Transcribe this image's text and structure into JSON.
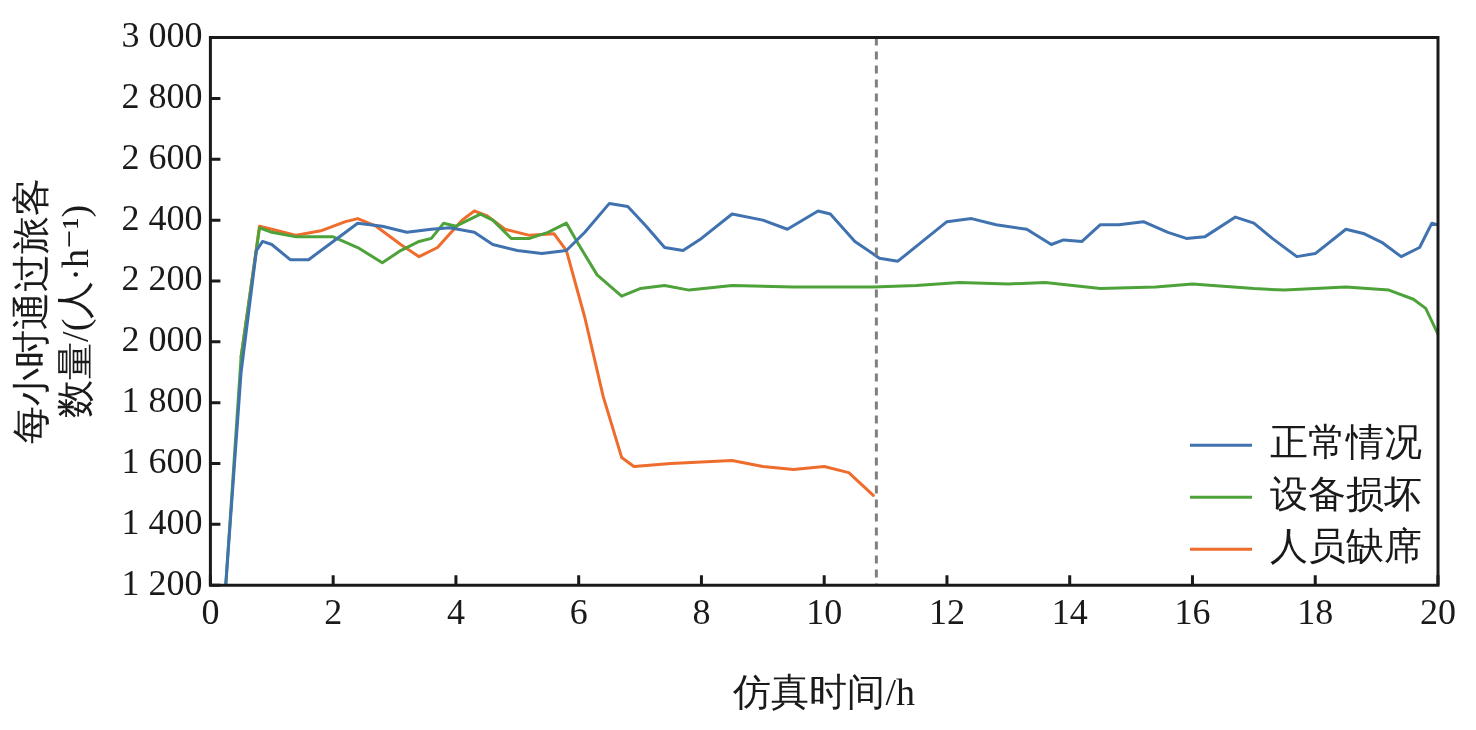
{
  "chart_data": {
    "type": "line",
    "xlabel": "仿真时间/h",
    "ylabel": "每小时通过旅客数量/(人·h⁻¹)",
    "xlim": [
      0,
      20
    ],
    "xticks": [
      0,
      2,
      4,
      6,
      8,
      10,
      12,
      14,
      16,
      18,
      20
    ],
    "ylim": [
      1200,
      3000
    ],
    "yticks": [
      {
        "value": 1200,
        "label": "1 200"
      },
      {
        "value": 1400,
        "label": "1 400"
      },
      {
        "value": 1600,
        "label": "1 600"
      },
      {
        "value": 1800,
        "label": "1 800"
      },
      {
        "value": 2000,
        "label": "2 000"
      },
      {
        "value": 2200,
        "label": "2 200"
      },
      {
        "value": 2400,
        "label": "2 400"
      },
      {
        "value": 2600,
        "label": "2 600"
      },
      {
        "value": 2800,
        "label": "2 800"
      },
      {
        "value": 3000,
        "label": "3 000"
      }
    ],
    "grid": false,
    "legend": "bottom right",
    "marker": "none",
    "line_style": "solid",
    "ref_lines": [
      {
        "axis": "x",
        "value": 10.85,
        "color": "#808080",
        "line_style": "dashed"
      }
    ],
    "series": [
      {
        "name": "正常情况",
        "color": "#3f72af",
        "x": [
          0.25,
          0.5,
          0.75,
          0.85,
          1.0,
          1.3,
          1.6,
          2.0,
          2.4,
          2.8,
          3.2,
          3.6,
          3.9,
          4.3,
          4.6,
          5.0,
          5.4,
          5.8,
          6.1,
          6.5,
          6.8,
          7.1,
          7.4,
          7.7,
          8.0,
          8.5,
          9.0,
          9.4,
          9.9,
          10.1,
          10.5,
          10.9,
          11.2,
          11.6,
          12.0,
          12.4,
          12.8,
          13.3,
          13.7,
          13.9,
          14.2,
          14.5,
          14.8,
          15.2,
          15.6,
          15.9,
          16.2,
          16.7,
          17.0,
          17.3,
          17.7,
          18.0,
          18.5,
          18.8,
          19.1,
          19.4,
          19.7,
          19.9,
          20
        ],
        "values": [
          1200,
          1900,
          2300,
          2330,
          2320,
          2270,
          2270,
          2330,
          2390,
          2380,
          2360,
          2370,
          2375,
          2360,
          2320,
          2300,
          2290,
          2300,
          2360,
          2455,
          2445,
          2380,
          2310,
          2300,
          2340,
          2420,
          2400,
          2370,
          2430,
          2420,
          2330,
          2275,
          2265,
          2330,
          2395,
          2405,
          2385,
          2370,
          2320,
          2335,
          2330,
          2385,
          2385,
          2395,
          2360,
          2340,
          2345,
          2410,
          2390,
          2340,
          2280,
          2290,
          2370,
          2355,
          2325,
          2280,
          2310,
          2390,
          2385
        ]
      },
      {
        "name": "设备损坏",
        "color": "#4ea23a",
        "x": [
          0.25,
          0.5,
          0.8,
          1.0,
          1.4,
          2.0,
          2.4,
          2.8,
          3.1,
          3.4,
          3.6,
          3.8,
          4.0,
          4.4,
          4.6,
          4.9,
          5.2,
          5.5,
          5.8,
          6.0,
          6.3,
          6.7,
          7.0,
          7.4,
          7.8,
          8.5,
          9.5,
          10.8,
          11.5,
          12.2,
          13.0,
          13.6,
          14.5,
          15.4,
          16.0,
          17.0,
          17.5,
          18.5,
          19.2,
          19.6,
          19.8,
          20
        ],
        "values": [
          1200,
          1950,
          2375,
          2360,
          2345,
          2345,
          2310,
          2260,
          2300,
          2330,
          2340,
          2390,
          2380,
          2420,
          2400,
          2340,
          2340,
          2360,
          2390,
          2320,
          2220,
          2150,
          2175,
          2185,
          2170,
          2185,
          2180,
          2180,
          2185,
          2195,
          2190,
          2195,
          2175,
          2180,
          2190,
          2175,
          2170,
          2180,
          2170,
          2140,
          2110,
          2025
        ]
      },
      {
        "name": "人员缺席",
        "color": "#ee6c2c",
        "x": [
          0.5,
          0.8,
          1.0,
          1.4,
          1.8,
          2.2,
          2.4,
          2.7,
          3.1,
          3.4,
          3.7,
          4.1,
          4.3,
          4.5,
          4.8,
          5.2,
          5.6,
          5.8,
          6.1,
          6.4,
          6.7,
          6.9,
          7.5,
          8.0,
          8.5,
          9.0,
          9.5,
          10.0,
          10.4,
          10.8
        ],
        "values": [
          1950,
          2380,
          2370,
          2350,
          2365,
          2395,
          2405,
          2380,
          2320,
          2280,
          2310,
          2400,
          2430,
          2415,
          2370,
          2350,
          2355,
          2300,
          2080,
          1820,
          1620,
          1590,
          1600,
          1605,
          1610,
          1590,
          1580,
          1590,
          1570,
          1495
        ]
      }
    ]
  }
}
